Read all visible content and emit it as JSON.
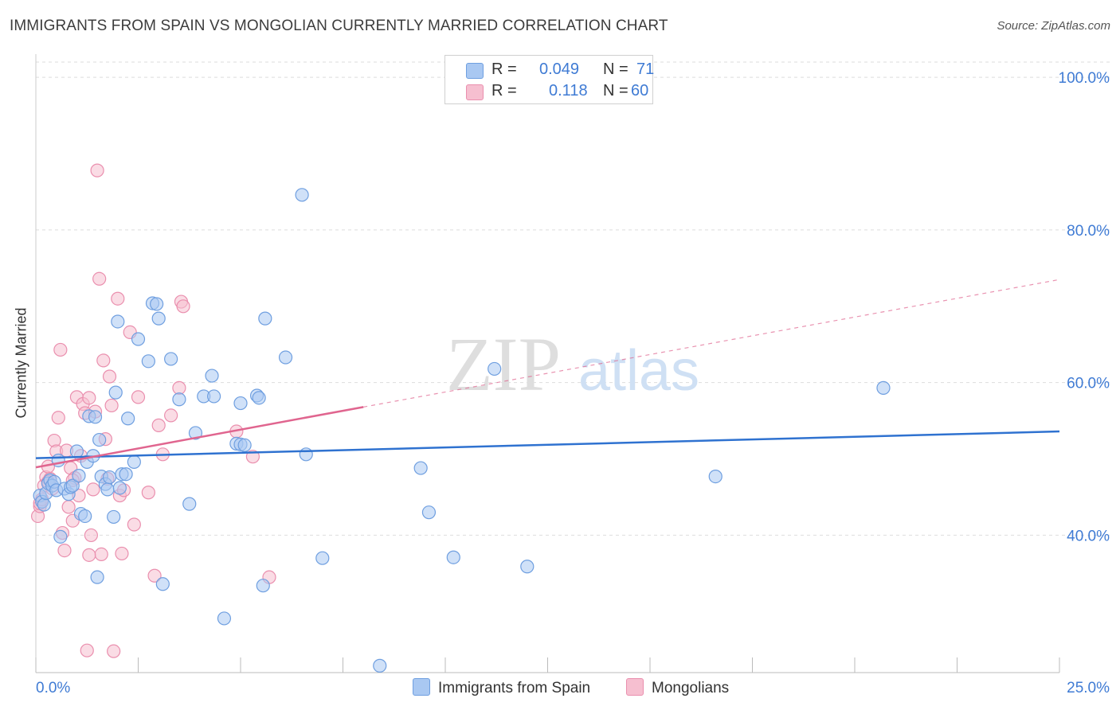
{
  "title": "IMMIGRANTS FROM SPAIN VS MONGOLIAN CURRENTLY MARRIED CORRELATION CHART",
  "source": "Source: ZipAtlas.com",
  "watermark": {
    "zip": "ZIP",
    "atlas": "atlas"
  },
  "colors": {
    "blue_fill": "#a9c8f2",
    "blue_stroke": "#6f9fe0",
    "blue_line": "#2f72d0",
    "pink_fill": "#f6bfd0",
    "pink_stroke": "#ea8fae",
    "pink_line": "#e0658f",
    "tick_text": "#3f7bd4",
    "grid": "#dddddd"
  },
  "legend": {
    "series": [
      {
        "r_label": "R =",
        "r_value": "0.049",
        "n_label": "N =",
        "n_value": "71"
      },
      {
        "r_label": "R =",
        "r_value": "0.118",
        "n_label": "N =",
        "n_value": "60"
      }
    ]
  },
  "bottom_legend": [
    "Immigrants from Spain",
    "Mongolians"
  ],
  "chart_data": {
    "type": "scatter",
    "title": "IMMIGRANTS FROM SPAIN VS MONGOLIAN CURRENTLY MARRIED CORRELATION CHART",
    "xlabel": "",
    "ylabel": "Currently Married",
    "xlim": [
      0,
      25
    ],
    "ylim": [
      22,
      102
    ],
    "x_tick_labels": [
      "0.0%",
      "25.0%"
    ],
    "y_ticks": [
      40,
      60,
      80,
      100
    ],
    "y_tick_labels": [
      "40.0%",
      "60.0%",
      "80.0%",
      "100.0%"
    ],
    "grid": true,
    "legend_position": "top-center",
    "series": [
      {
        "name": "Immigrants from Spain",
        "r": 0.049,
        "n": 71,
        "trend": {
          "x": [
            0,
            25
          ],
          "y": [
            50.1,
            53.6
          ],
          "dashed_extension": false
        },
        "points": [
          [
            0.1,
            45.2
          ],
          [
            0.15,
            44.4
          ],
          [
            0.2,
            44.0
          ],
          [
            0.25,
            45.5
          ],
          [
            0.3,
            46.8
          ],
          [
            0.35,
            47.2
          ],
          [
            0.4,
            46.5
          ],
          [
            0.45,
            47.0
          ],
          [
            0.5,
            45.9
          ],
          [
            0.55,
            49.8
          ],
          [
            0.6,
            39.8
          ],
          [
            0.7,
            46.1
          ],
          [
            0.8,
            45.4
          ],
          [
            0.85,
            46.3
          ],
          [
            0.9,
            46.5
          ],
          [
            1.0,
            51.0
          ],
          [
            1.05,
            47.8
          ],
          [
            1.1,
            42.8
          ],
          [
            1.2,
            42.5
          ],
          [
            1.25,
            49.6
          ],
          [
            1.3,
            55.6
          ],
          [
            1.4,
            50.4
          ],
          [
            1.45,
            55.5
          ],
          [
            1.5,
            34.5
          ],
          [
            1.55,
            52.5
          ],
          [
            1.6,
            47.7
          ],
          [
            1.7,
            46.7
          ],
          [
            1.75,
            46.0
          ],
          [
            1.8,
            47.6
          ],
          [
            1.9,
            42.4
          ],
          [
            1.95,
            58.7
          ],
          [
            2.0,
            68.0
          ],
          [
            2.05,
            46.2
          ],
          [
            2.1,
            48.0
          ],
          [
            2.2,
            48.0
          ],
          [
            2.25,
            55.3
          ],
          [
            2.4,
            49.6
          ],
          [
            2.5,
            65.7
          ],
          [
            2.75,
            62.8
          ],
          [
            2.85,
            70.4
          ],
          [
            2.95,
            70.3
          ],
          [
            3.0,
            68.4
          ],
          [
            3.1,
            33.6
          ],
          [
            3.3,
            63.1
          ],
          [
            3.5,
            57.8
          ],
          [
            3.75,
            44.1
          ],
          [
            3.9,
            53.4
          ],
          [
            4.1,
            58.2
          ],
          [
            4.3,
            60.9
          ],
          [
            4.35,
            58.2
          ],
          [
            4.6,
            29.1
          ],
          [
            4.9,
            52.0
          ],
          [
            5.0,
            51.9
          ],
          [
            5.0,
            57.3
          ],
          [
            5.1,
            51.8
          ],
          [
            5.4,
            58.3
          ],
          [
            5.45,
            58.0
          ],
          [
            5.55,
            33.4
          ],
          [
            5.6,
            68.4
          ],
          [
            6.1,
            63.3
          ],
          [
            6.5,
            84.6
          ],
          [
            6.6,
            50.6
          ],
          [
            7.0,
            37.0
          ],
          [
            8.4,
            22.9
          ],
          [
            9.4,
            48.8
          ],
          [
            9.6,
            43.0
          ],
          [
            10.2,
            37.1
          ],
          [
            11.2,
            61.8
          ],
          [
            12.0,
            35.9
          ],
          [
            16.6,
            47.7
          ],
          [
            20.7,
            59.3
          ]
        ]
      },
      {
        "name": "Mongolians",
        "r": 0.118,
        "n": 60,
        "trend": {
          "x": [
            0,
            8
          ],
          "y": [
            48.9,
            56.8
          ],
          "dashed_extension": true,
          "dashed_to": [
            25,
            73.5
          ]
        },
        "points": [
          [
            0.05,
            42.5
          ],
          [
            0.1,
            43.8
          ],
          [
            0.1,
            44.2
          ],
          [
            0.15,
            44.7
          ],
          [
            0.2,
            46.5
          ],
          [
            0.25,
            47.6
          ],
          [
            0.3,
            49.0
          ],
          [
            0.35,
            47.4
          ],
          [
            0.4,
            46.1
          ],
          [
            0.45,
            52.4
          ],
          [
            0.5,
            51.0
          ],
          [
            0.55,
            55.4
          ],
          [
            0.6,
            64.3
          ],
          [
            0.65,
            40.3
          ],
          [
            0.7,
            38.0
          ],
          [
            0.75,
            51.1
          ],
          [
            0.8,
            43.7
          ],
          [
            0.85,
            48.8
          ],
          [
            0.9,
            41.9
          ],
          [
            0.95,
            47.5
          ],
          [
            1.0,
            58.1
          ],
          [
            1.05,
            45.2
          ],
          [
            1.1,
            50.4
          ],
          [
            1.15,
            57.2
          ],
          [
            1.2,
            56.0
          ],
          [
            1.25,
            24.9
          ],
          [
            1.3,
            58.0
          ],
          [
            1.35,
            40.0
          ],
          [
            1.4,
            46.0
          ],
          [
            1.45,
            56.2
          ],
          [
            1.5,
            87.8
          ],
          [
            1.55,
            73.6
          ],
          [
            1.6,
            37.5
          ],
          [
            1.65,
            62.9
          ],
          [
            1.7,
            52.6
          ],
          [
            1.75,
            47.4
          ],
          [
            1.8,
            60.8
          ],
          [
            1.85,
            57.0
          ],
          [
            1.9,
            24.8
          ],
          [
            2.0,
            71.0
          ],
          [
            2.05,
            45.2
          ],
          [
            2.1,
            37.6
          ],
          [
            2.15,
            45.9
          ],
          [
            2.3,
            66.6
          ],
          [
            2.4,
            41.4
          ],
          [
            2.5,
            58.1
          ],
          [
            2.75,
            45.6
          ],
          [
            2.9,
            34.7
          ],
          [
            3.0,
            54.4
          ],
          [
            3.1,
            50.6
          ],
          [
            3.3,
            55.7
          ],
          [
            3.5,
            59.3
          ],
          [
            3.55,
            70.6
          ],
          [
            3.6,
            70.0
          ],
          [
            4.9,
            53.6
          ],
          [
            5.3,
            50.3
          ],
          [
            5.7,
            34.5
          ],
          [
            0.3,
            47.0
          ],
          [
            0.9,
            47.2
          ],
          [
            1.3,
            37.4
          ]
        ]
      }
    ]
  }
}
